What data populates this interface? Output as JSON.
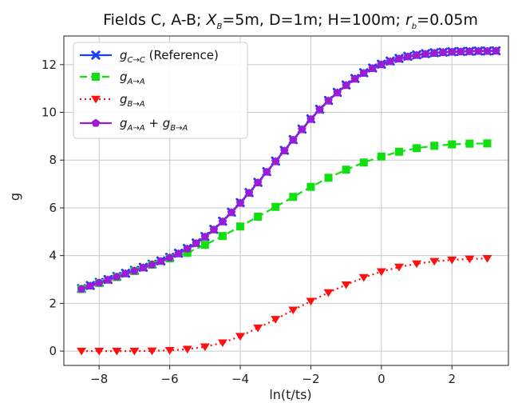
{
  "chart_data": {
    "type": "line",
    "title": "Fields C, A-B; X_B=5m, D=1m; H=100m; r_b=0.05m",
    "title_parts": {
      "prefix": "Fields C, A-B; ",
      "xb_main": "X",
      "xb_sub": "B",
      "xb_rest": "=5m, D=1m; H=100m; ",
      "rb_main": "r",
      "rb_sub": "b",
      "rb_rest": "=0.05m"
    },
    "xlabel": "ln(t/ts)",
    "ylabel": "g",
    "xlim": [
      -9.0,
      3.6
    ],
    "ylim": [
      -0.6,
      13.2
    ],
    "xticks": [
      -8,
      -6,
      -4,
      -2,
      0,
      2
    ],
    "yticks": [
      0,
      2,
      4,
      6,
      8,
      10,
      12
    ],
    "grid": true,
    "legend_position": "top-left",
    "series": [
      {
        "name": "g_{C→C} (Reference)",
        "legend": {
          "main": "g",
          "sub": "C→C",
          "rest": " (Reference)"
        },
        "color": "#1f3ff0",
        "marker": "x",
        "linestyle": "solid",
        "x": [
          -8.5,
          -8.25,
          -8.0,
          -7.75,
          -7.5,
          -7.25,
          -7.0,
          -6.75,
          -6.5,
          -6.25,
          -6.0,
          -5.75,
          -5.5,
          -5.25,
          -5.0,
          -4.75,
          -4.5,
          -4.25,
          -4.0,
          -3.75,
          -3.5,
          -3.25,
          -3.0,
          -2.75,
          -2.5,
          -2.25,
          -2.0,
          -1.75,
          -1.5,
          -1.25,
          -1.0,
          -0.75,
          -0.5,
          -0.25,
          0.0,
          0.25,
          0.5,
          0.75,
          1.0,
          1.25,
          1.5,
          1.75,
          2.0,
          2.25,
          2.5,
          2.75,
          3.0,
          3.25
        ],
        "y": [
          2.62,
          2.75,
          2.88,
          3.0,
          3.13,
          3.26,
          3.38,
          3.51,
          3.64,
          3.78,
          3.93,
          4.1,
          4.3,
          4.53,
          4.8,
          5.1,
          5.44,
          5.82,
          6.22,
          6.64,
          7.07,
          7.52,
          7.96,
          8.41,
          8.86,
          9.3,
          9.73,
          10.13,
          10.5,
          10.84,
          11.15,
          11.42,
          11.66,
          11.86,
          12.02,
          12.15,
          12.26,
          12.35,
          12.41,
          12.46,
          12.5,
          12.52,
          12.54,
          12.55,
          12.56,
          12.57,
          12.57,
          12.58
        ]
      },
      {
        "name": "g_{A→A}",
        "legend": {
          "main": "g",
          "sub": "A→A",
          "rest": ""
        },
        "color": "#10e010",
        "marker": "square",
        "linestyle": "dashed",
        "x": [
          -8.5,
          -8.0,
          -7.5,
          -7.0,
          -6.5,
          -6.0,
          -5.5,
          -5.0,
          -4.5,
          -4.0,
          -3.5,
          -3.0,
          -2.5,
          -2.0,
          -1.5,
          -1.0,
          -0.5,
          0.0,
          0.5,
          1.0,
          1.5,
          2.0,
          2.5,
          3.0
        ],
        "y": [
          2.6,
          2.85,
          3.1,
          3.35,
          3.62,
          3.88,
          4.12,
          4.45,
          4.82,
          5.22,
          5.63,
          6.04,
          6.46,
          6.88,
          7.26,
          7.6,
          7.9,
          8.15,
          8.35,
          8.5,
          8.6,
          8.66,
          8.69,
          8.7
        ]
      },
      {
        "name": "g_{B→A}",
        "legend": {
          "main": "g",
          "sub": "B→A",
          "rest": ""
        },
        "color": "#ff1010",
        "marker": "triangle-down",
        "linestyle": "dotted",
        "x": [
          -8.5,
          -8.0,
          -7.5,
          -7.0,
          -6.5,
          -6.0,
          -5.5,
          -5.0,
          -4.5,
          -4.0,
          -3.5,
          -3.0,
          -2.5,
          -2.0,
          -1.5,
          -1.0,
          -0.5,
          0.0,
          0.5,
          1.0,
          1.5,
          2.0,
          2.5,
          3.0
        ],
        "y": [
          0.0,
          0.0,
          0.0,
          0.0,
          0.01,
          0.03,
          0.08,
          0.18,
          0.35,
          0.62,
          0.97,
          1.33,
          1.72,
          2.09,
          2.45,
          2.78,
          3.08,
          3.33,
          3.52,
          3.66,
          3.76,
          3.82,
          3.86,
          3.88
        ]
      },
      {
        "name": "g_{A→A} + g_{B→A}",
        "legend": {
          "main": "g",
          "sub": "A→A",
          "mid": " + ",
          "main2": "g",
          "sub2": "B→A",
          "rest": ""
        },
        "color": "#9b1bd6",
        "marker": "pentagon",
        "linestyle": "solid",
        "x": [
          -8.5,
          -8.25,
          -8.0,
          -7.75,
          -7.5,
          -7.25,
          -7.0,
          -6.75,
          -6.5,
          -6.25,
          -6.0,
          -5.75,
          -5.5,
          -5.25,
          -5.0,
          -4.75,
          -4.5,
          -4.25,
          -4.0,
          -3.75,
          -3.5,
          -3.25,
          -3.0,
          -2.75,
          -2.5,
          -2.25,
          -2.0,
          -1.75,
          -1.5,
          -1.25,
          -1.0,
          -0.75,
          -0.5,
          -0.25,
          0.0,
          0.25,
          0.5,
          0.75,
          1.0,
          1.25,
          1.5,
          1.75,
          2.0,
          2.25,
          2.5,
          2.75,
          3.0,
          3.25
        ],
        "y": [
          2.6,
          2.73,
          2.86,
          2.98,
          3.11,
          3.24,
          3.36,
          3.49,
          3.62,
          3.76,
          3.91,
          4.08,
          4.28,
          4.51,
          4.78,
          5.08,
          5.42,
          5.8,
          6.2,
          6.62,
          7.05,
          7.5,
          7.94,
          8.39,
          8.84,
          9.28,
          9.71,
          10.11,
          10.48,
          10.82,
          11.13,
          11.4,
          11.64,
          11.84,
          12.0,
          12.13,
          12.24,
          12.33,
          12.39,
          12.44,
          12.48,
          12.51,
          12.53,
          12.54,
          12.55,
          12.56,
          12.56,
          12.57
        ]
      }
    ]
  }
}
